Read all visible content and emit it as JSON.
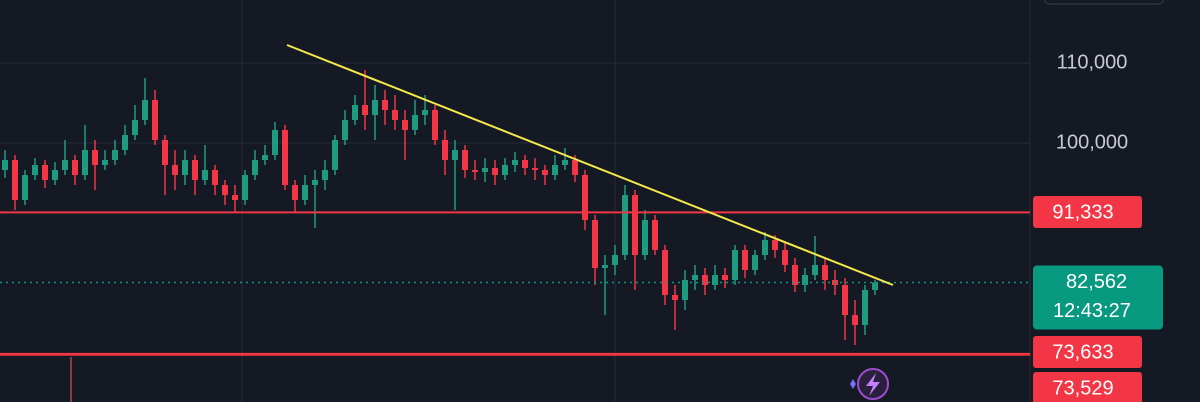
{
  "chart_data": {
    "type": "candlestick",
    "up_color": "#1f9a7f",
    "down_color": "#f23645",
    "ylim": [
      67625,
      117875
    ],
    "yticks": [
      {
        "value": 110000,
        "label": "110,000"
      },
      {
        "value": 100000,
        "label": "100,000"
      }
    ],
    "grid": true,
    "candles": [
      [
        96625,
        99125,
        95625,
        97875
      ],
      [
        97875,
        98500,
        91625,
        92875
      ],
      [
        92875,
        96625,
        92250,
        96000
      ],
      [
        96000,
        98125,
        95375,
        97250
      ],
      [
        97250,
        97875,
        94375,
        95375
      ],
      [
        95375,
        97625,
        94750,
        96625
      ],
      [
        96625,
        100375,
        96000,
        97875
      ],
      [
        97875,
        98500,
        94750,
        96000
      ],
      [
        96000,
        102250,
        95375,
        99125
      ],
      [
        99125,
        100375,
        94125,
        97250
      ],
      [
        97250,
        99125,
        96625,
        97875
      ],
      [
        97875,
        100375,
        97250,
        99125
      ],
      [
        99125,
        102250,
        98500,
        101000
      ],
      [
        101000,
        104750,
        100375,
        102875
      ],
      [
        102875,
        108125,
        102250,
        105375
      ],
      [
        105375,
        106625,
        99750,
        100375
      ],
      [
        100375,
        101000,
        93500,
        97250
      ],
      [
        97250,
        99125,
        94125,
        96000
      ],
      [
        96000,
        99125,
        94750,
        97875
      ],
      [
        97875,
        98500,
        93500,
        95375
      ],
      [
        95375,
        99750,
        94750,
        96625
      ],
      [
        96625,
        97250,
        93500,
        94750
      ],
      [
        94750,
        95375,
        92250,
        93500
      ],
      [
        93500,
        94750,
        91375,
        92875
      ],
      [
        92875,
        96625,
        92250,
        96000
      ],
      [
        96000,
        99125,
        95375,
        97875
      ],
      [
        97875,
        99750,
        97250,
        98500
      ],
      [
        98500,
        102625,
        97875,
        101625
      ],
      [
        101625,
        102250,
        94125,
        94750
      ],
      [
        94750,
        95375,
        91375,
        92875
      ],
      [
        92875,
        96000,
        92250,
        94750
      ],
      [
        94750,
        96625,
        89375,
        95375
      ],
      [
        95375,
        97875,
        94125,
        96625
      ],
      [
        96625,
        101000,
        96000,
        100375
      ],
      [
        100375,
        104125,
        99750,
        102875
      ],
      [
        102875,
        106000,
        102250,
        104750
      ],
      [
        104750,
        109125,
        101625,
        103500
      ],
      [
        103500,
        107250,
        100375,
        105375
      ],
      [
        105375,
        106625,
        102250,
        104125
      ],
      [
        104125,
        106000,
        101625,
        102875
      ],
      [
        102875,
        104125,
        97875,
        101625
      ],
      [
        101625,
        105375,
        101000,
        103500
      ],
      [
        103500,
        106000,
        102250,
        104125
      ],
      [
        104125,
        104750,
        99750,
        100375
      ],
      [
        100375,
        101625,
        96000,
        97875
      ],
      [
        97875,
        100375,
        91625,
        99125
      ],
      [
        99125,
        99750,
        95625,
        96625
      ],
      [
        96625,
        97875,
        95375,
        96375
      ],
      [
        96375,
        98125,
        95125,
        96875
      ],
      [
        96875,
        97875,
        94750,
        96000
      ],
      [
        96000,
        98125,
        95375,
        97250
      ],
      [
        97250,
        98875,
        96375,
        97875
      ],
      [
        97875,
        98500,
        96000,
        96875
      ],
      [
        96875,
        98125,
        95375,
        96625
      ],
      [
        96625,
        97250,
        94750,
        96000
      ],
      [
        96000,
        98500,
        95375,
        97250
      ],
      [
        97250,
        99375,
        96625,
        97875
      ],
      [
        97875,
        98500,
        95125,
        96000
      ],
      [
        96000,
        96625,
        89125,
        90375
      ],
      [
        90375,
        91000,
        82250,
        84375
      ],
      [
        84375,
        86000,
        78500,
        84750
      ],
      [
        84750,
        87250,
        83500,
        86000
      ],
      [
        86000,
        94750,
        85375,
        93500
      ],
      [
        93500,
        94125,
        81625,
        86000
      ],
      [
        86000,
        91625,
        85375,
        90375
      ],
      [
        90375,
        91000,
        86000,
        86625
      ],
      [
        86625,
        87250,
        79750,
        81000
      ],
      [
        81000,
        82250,
        76625,
        80375
      ],
      [
        80375,
        84125,
        79125,
        82875
      ],
      [
        82875,
        84750,
        81625,
        83500
      ],
      [
        83500,
        84375,
        81000,
        82250
      ],
      [
        82250,
        84750,
        81625,
        83500
      ],
      [
        83500,
        84375,
        81875,
        82875
      ],
      [
        82875,
        87250,
        82250,
        86625
      ],
      [
        86625,
        87250,
        83125,
        84125
      ],
      [
        84125,
        86625,
        83500,
        86000
      ],
      [
        86000,
        88875,
        85375,
        87875
      ],
      [
        87875,
        88500,
        85625,
        86625
      ],
      [
        86625,
        87625,
        83875,
        84750
      ],
      [
        84750,
        85625,
        81375,
        82250
      ],
      [
        82250,
        84375,
        81375,
        83500
      ],
      [
        83500,
        88375,
        82875,
        84750
      ],
      [
        84750,
        85625,
        81625,
        82875
      ],
      [
        82875,
        84125,
        81000,
        82250
      ],
      [
        82250,
        83125,
        75375,
        78500
      ],
      [
        78500,
        80375,
        74750,
        77250
      ],
      [
        77250,
        82250,
        76000,
        81625
      ],
      [
        81625,
        82875,
        81000,
        82562
      ]
    ],
    "price_lines": [
      {
        "value": 91333,
        "label": "91,333",
        "color": "#f23645"
      },
      {
        "value": 73633,
        "label": "73,633",
        "color": "#f23645"
      },
      {
        "value": 73529,
        "label": "73,529",
        "color": "#f23645"
      }
    ],
    "current_price": {
      "value": 82562,
      "label": "82,562",
      "countdown": "12:43:27",
      "color": "#089981"
    },
    "trendline": {
      "color": "#f5e94a",
      "points": [
        [
          28.2,
          112250
        ],
        [
          88.8,
          82250
        ]
      ]
    }
  }
}
